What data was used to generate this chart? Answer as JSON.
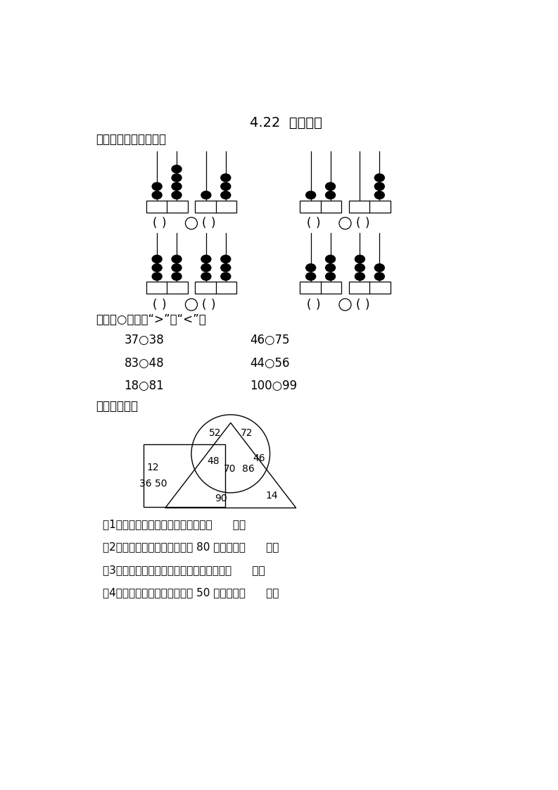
{
  "title": "4.22  比较大小",
  "section1": "一、写一写，比一比。",
  "section2": "二、在○里填上“>”或“<”。",
  "section3": "三、我会填。",
  "comparison_problems": [
    [
      "37○38",
      "46○75"
    ],
    [
      "83○48",
      "44○56"
    ],
    [
      "18○81",
      "100○99"
    ]
  ],
  "questions": [
    "（1）正方形里最大的数是我，我是（      ）。",
    "（2）我在圆形和三角形里，比 80 大，我是（      ）。",
    "（3）我在正方形、圆形和三角形里，我是（      ）。",
    "（4）我在正方形和圆形里，比 50 小，我是（      ）。"
  ],
  "bg_color": "#ffffff",
  "text_color": "#000000"
}
